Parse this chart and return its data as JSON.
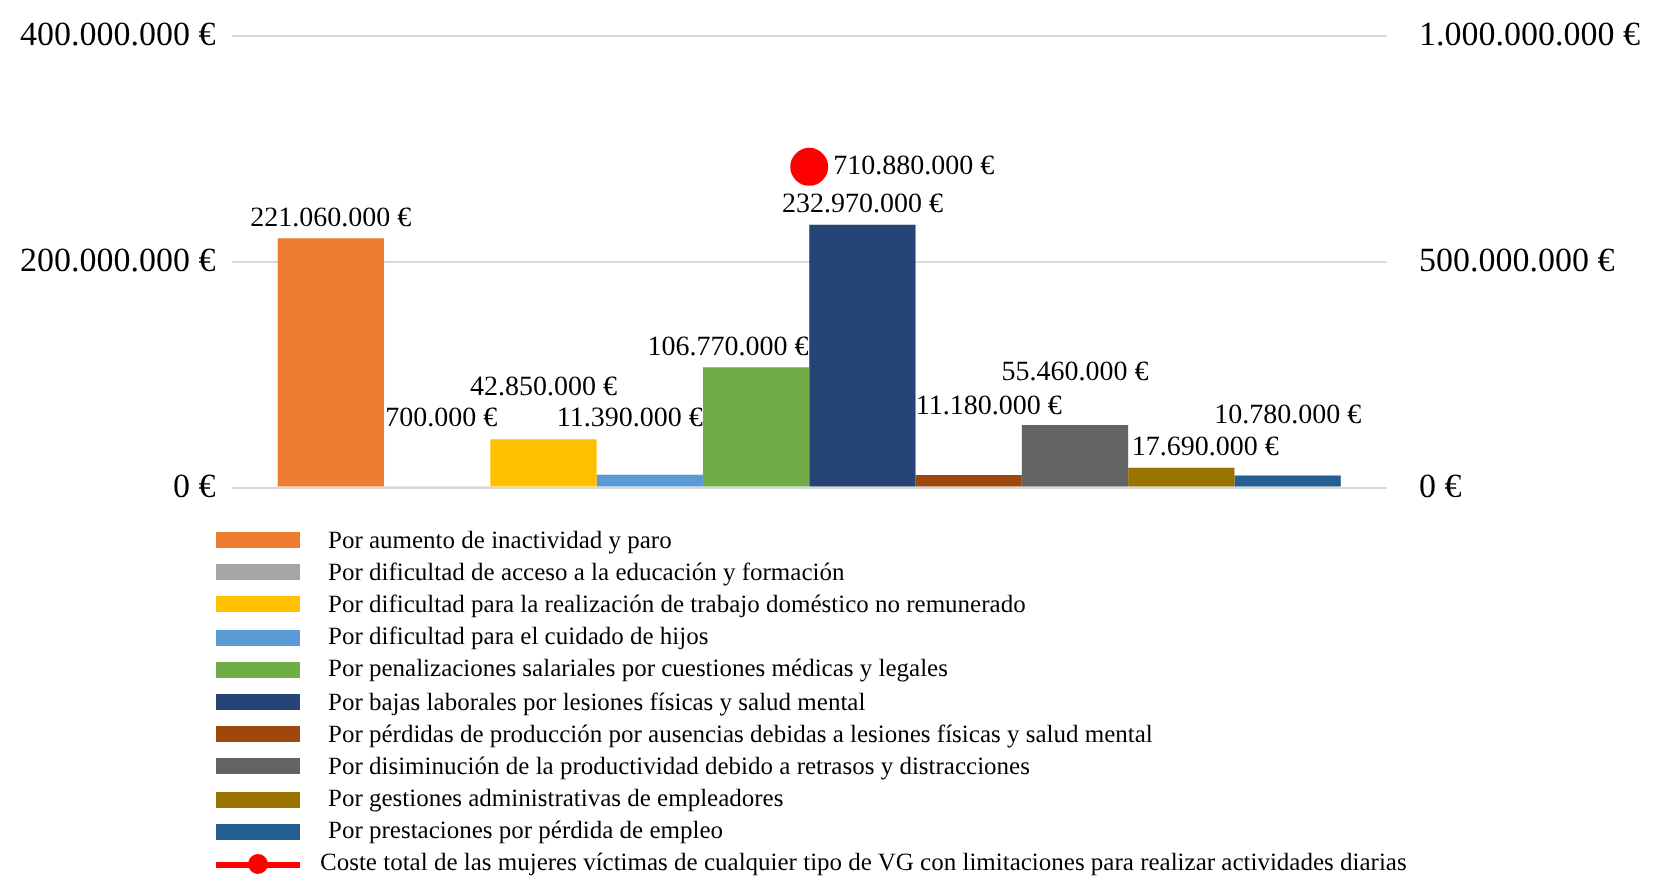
{
  "chart_data": {
    "type": "bar",
    "categories": [
      null
    ],
    "series": [
      {
        "name": "Por aumento de inactividad y paro",
        "color": "#ed7d31",
        "values": [
          221060000
        ],
        "value_labels": [
          "221.060.000 €"
        ]
      },
      {
        "name": "Por dificultad de acceso a la educación y formación",
        "color": "#a5a5a5",
        "values": [
          700000
        ],
        "value_labels": [
          "700.000 €"
        ]
      },
      {
        "name": "Por dificultad para la realización de trabajo doméstico no remunerado",
        "color": "#ffc000",
        "values": [
          42850000
        ],
        "value_labels": [
          "42.850.000 €"
        ]
      },
      {
        "name": "Por dificultad para el cuidado de hijos",
        "color": "#5b9bd5",
        "values": [
          11390000
        ],
        "value_labels": [
          "11.390.000 €"
        ]
      },
      {
        "name": "Por penalizaciones salariales por cuestiones médicas y legales",
        "color": "#70ad47",
        "values": [
          106770000
        ],
        "value_labels": [
          "106.770.000 €"
        ]
      },
      {
        "name": "Por bajas laborales por lesiones físicas y salud mental",
        "color": "#264478",
        "values": [
          232970000
        ],
        "value_labels": [
          "232.970.000 €"
        ]
      },
      {
        "name": "Por pérdidas de producción por ausencias debidas a lesiones físicas y salud mental",
        "color": "#9e480e",
        "values": [
          11180000
        ],
        "value_labels": [
          "11.180.000 €"
        ]
      },
      {
        "name": "Por disiminución de la productividad debido a retrasos y distracciones",
        "color": "#636363",
        "values": [
          55460000
        ],
        "value_labels": [
          "55.460.000 €"
        ]
      },
      {
        "name": "Por gestiones administrativas de empleadores",
        "color": "#997300",
        "values": [
          17690000
        ],
        "value_labels": [
          "17.690.000 €"
        ]
      },
      {
        "name": "Por prestaciones por pérdida de empleo",
        "color": "#255e91",
        "values": [
          10780000
        ],
        "value_labels": [
          "10.780.000 €"
        ]
      },
      {
        "name": "Coste total de las mujeres víctimas de cualquier tipo de VG con limitaciones para realizar actividades diarias",
        "type": "line",
        "axis": "y2",
        "color": "#ff0000",
        "values": [
          710880000
        ],
        "value_labels": [
          "710.880.000 €"
        ]
      }
    ],
    "ylim": [
      0,
      400000000
    ],
    "yticks": [
      {
        "value": 0,
        "label": "0 €"
      },
      {
        "value": 200000000,
        "label": "200.000.000 €"
      },
      {
        "value": 400000000,
        "label": "400.000.000 €"
      }
    ],
    "y2lim": [
      0,
      1000000000
    ],
    "y2ticks": [
      {
        "value": 0,
        "label": "0 €"
      },
      {
        "value": 500000000,
        "label": "500.000.000 €"
      },
      {
        "value": 1000000000,
        "label": "1.000.000.000 €"
      }
    ],
    "grid": "y",
    "legend": "bottom",
    "marker": "circle"
  }
}
